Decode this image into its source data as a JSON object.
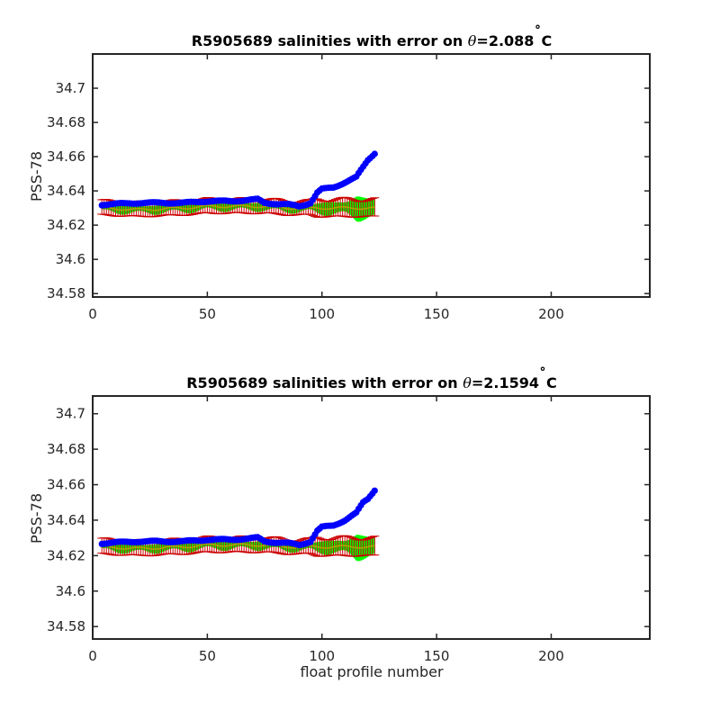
{
  "chart_data": [
    {
      "type": "scatter",
      "title_prefix": "R5905689 salinities with error on ",
      "title_theta": "θ",
      "title_value": "=2.088",
      "title_degree": "˚",
      "title_unit": "C",
      "xlabel": "",
      "ylabel": "PSS-78",
      "xlim": [
        0,
        243
      ],
      "ylim": [
        34.578,
        34.72
      ],
      "xticks": [
        "0",
        "50",
        "100",
        "150",
        "200"
      ],
      "yticks": [
        "34.58",
        "34.6",
        "34.62",
        "34.64",
        "34.66",
        "34.68",
        "34.7"
      ],
      "grid": false,
      "colors": {
        "float_salinity": "#0000ff",
        "mapped_band": "#00ff00",
        "error_bars": "#cc0000",
        "mapped_line": "#b5a000"
      },
      "x_start": 4,
      "anchors_x": [
        4,
        20,
        40,
        50,
        60,
        72,
        75,
        85,
        90,
        95,
        98,
        100,
        105,
        110,
        115,
        118,
        120,
        123
      ],
      "anchors_float": [
        34.632,
        34.633,
        34.633,
        34.634,
        34.634,
        34.635,
        34.633,
        34.632,
        34.631,
        34.633,
        34.639,
        34.641,
        34.642,
        34.645,
        34.648,
        34.654,
        34.658,
        34.662
      ],
      "anchors_mapped": [
        34.63,
        34.629,
        34.63,
        34.631,
        34.631,
        34.631,
        34.631,
        34.63,
        34.63,
        34.63,
        34.63,
        34.63,
        34.63,
        34.63,
        34.63,
        34.63,
        34.63,
        34.63
      ],
      "anchors_band": [
        0.002,
        0.002,
        0.002,
        0.002,
        0.002,
        0.002,
        0.002,
        0.002,
        0.002,
        0.002,
        0.003,
        0.003,
        0.003,
        0.004,
        0.006,
        0.005,
        0.005,
        0.006
      ],
      "anchors_err": [
        0.004,
        0.004,
        0.004,
        0.004,
        0.004,
        0.004,
        0.004,
        0.004,
        0.004,
        0.004,
        0.005,
        0.005,
        0.005,
        0.005,
        0.005,
        0.005,
        0.005,
        0.005
      ]
    },
    {
      "type": "scatter",
      "title_prefix": "R5905689 salinities with error on ",
      "title_theta": "θ",
      "title_value": "=2.1594",
      "title_degree": "˚",
      "title_unit": "C",
      "xlabel": "float profile number",
      "ylabel": "PSS-78",
      "xlim": [
        0,
        243
      ],
      "ylim": [
        34.573,
        34.71
      ],
      "xticks": [
        "0",
        "50",
        "100",
        "150",
        "200"
      ],
      "yticks": [
        "34.58",
        "34.6",
        "34.62",
        "34.64",
        "34.66",
        "34.68",
        "34.7"
      ],
      "grid": false,
      "colors": {
        "float_salinity": "#0000ff",
        "mapped_band": "#00ff00",
        "error_bars": "#cc0000",
        "mapped_line": "#b5a000"
      },
      "x_start": 4,
      "anchors_x": [
        4,
        20,
        40,
        50,
        60,
        72,
        75,
        85,
        90,
        95,
        98,
        100,
        105,
        110,
        115,
        118,
        120,
        123
      ],
      "anchors_float": [
        34.627,
        34.628,
        34.628,
        34.629,
        34.629,
        34.63,
        34.628,
        34.627,
        34.626,
        34.628,
        34.634,
        34.636,
        34.637,
        34.64,
        34.644,
        34.65,
        34.652,
        34.657
      ],
      "anchors_mapped": [
        34.625,
        34.624,
        34.625,
        34.626,
        34.626,
        34.626,
        34.626,
        34.625,
        34.625,
        34.625,
        34.625,
        34.625,
        34.625,
        34.625,
        34.625,
        34.625,
        34.625,
        34.625
      ],
      "anchors_band": [
        0.002,
        0.002,
        0.002,
        0.002,
        0.002,
        0.002,
        0.002,
        0.002,
        0.002,
        0.002,
        0.003,
        0.003,
        0.003,
        0.004,
        0.006,
        0.005,
        0.005,
        0.006
      ],
      "anchors_err": [
        0.004,
        0.004,
        0.004,
        0.004,
        0.004,
        0.004,
        0.004,
        0.004,
        0.004,
        0.004,
        0.005,
        0.005,
        0.005,
        0.005,
        0.005,
        0.005,
        0.005,
        0.005
      ]
    }
  ]
}
